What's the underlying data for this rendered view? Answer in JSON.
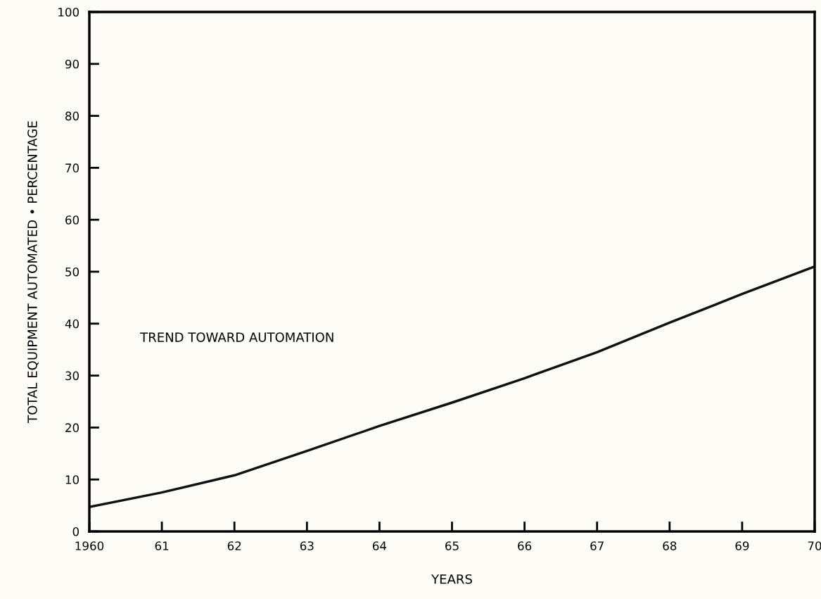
{
  "chart_data": {
    "type": "line",
    "xlabel": "YEARS",
    "ylabel": "TOTAL EQUIPMENT AUTOMATED • PERCENTAGE",
    "annotations": [
      "TREND TOWARD AUTOMATION"
    ],
    "x": [
      1960,
      1961,
      1962,
      1963,
      1964,
      1965,
      1966,
      1967,
      1968,
      1969,
      1970
    ],
    "series": [
      {
        "color": "#111111",
        "values": [
          4.7,
          7.5,
          10.8,
          15.5,
          20.3,
          24.8,
          29.5,
          34.5,
          40.2,
          45.7,
          51
        ]
      }
    ],
    "xlim": [
      1960,
      1970
    ],
    "xticks": [
      1960,
      {
        "value": 1961,
        "label": "61"
      },
      {
        "value": 1962,
        "label": "62"
      },
      {
        "value": 1963,
        "label": "63"
      },
      {
        "value": 1964,
        "label": "64"
      },
      {
        "value": 1965,
        "label": "65"
      },
      {
        "value": 1966,
        "label": "66"
      },
      {
        "value": 1967,
        "label": "67"
      },
      {
        "value": 1968,
        "label": "68"
      },
      {
        "value": 1969,
        "label": "69"
      },
      {
        "value": 1970,
        "label": "70"
      }
    ],
    "ylim": [
      0,
      100
    ],
    "yticks": [
      0,
      10,
      20,
      30,
      40,
      50,
      60,
      70,
      80,
      90,
      100
    ],
    "grid": false,
    "legend": false,
    "marker": "none",
    "line_style": "solid"
  }
}
